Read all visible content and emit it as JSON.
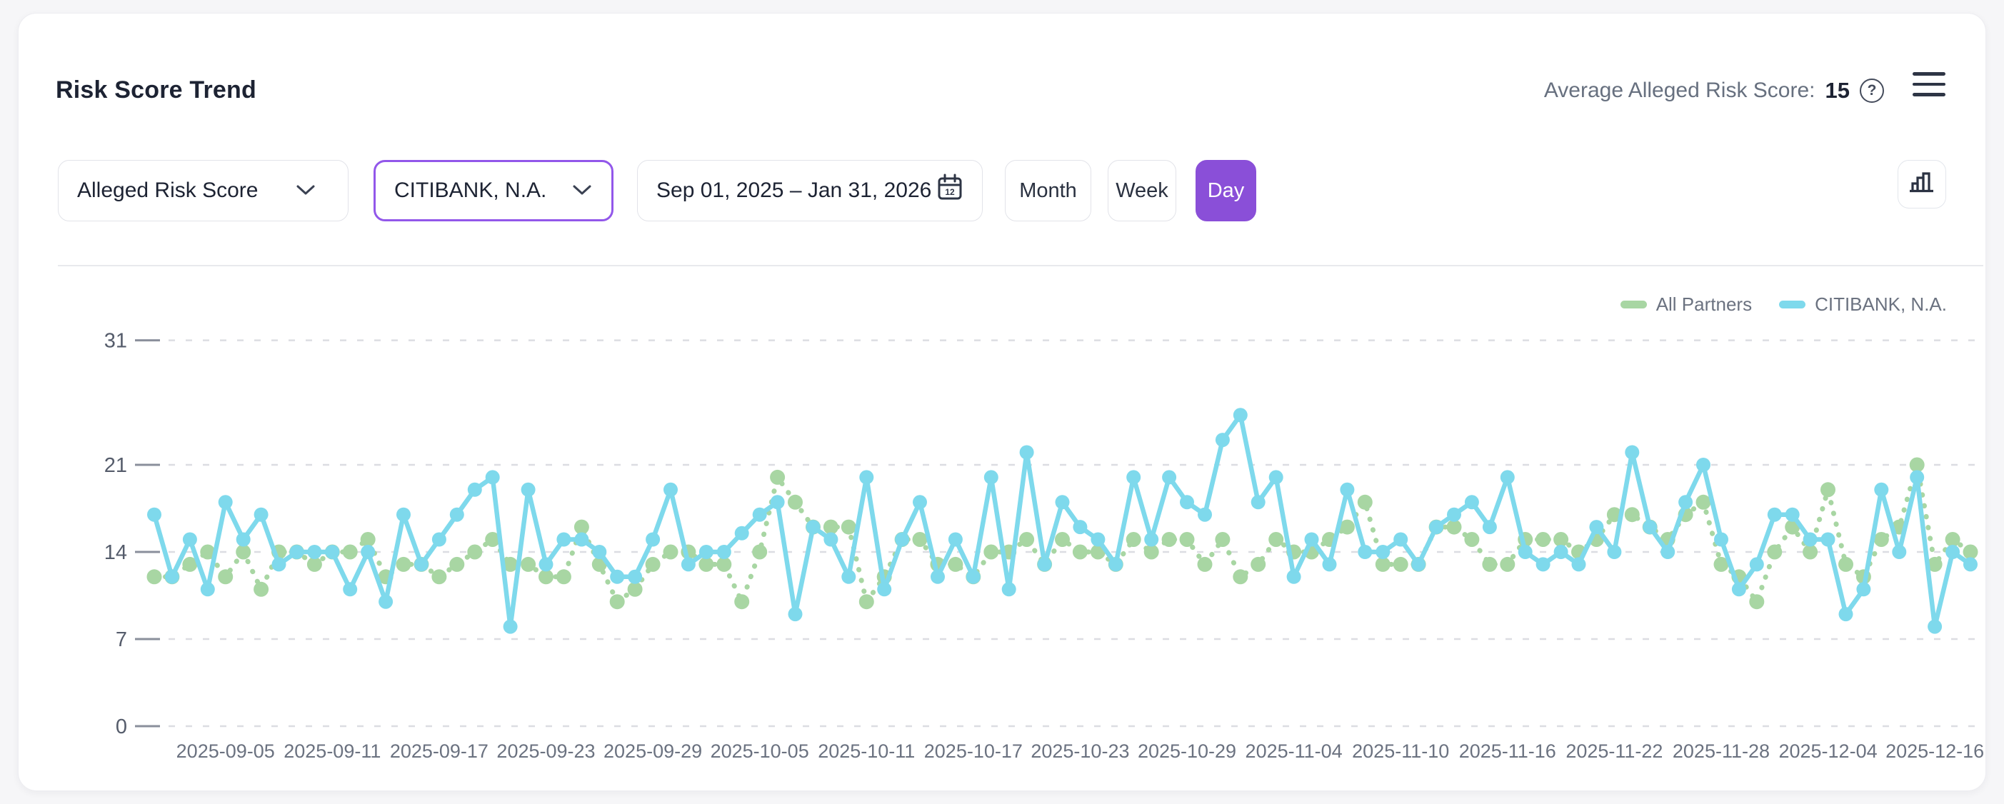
{
  "header": {
    "title": "Risk Score Trend",
    "average_label": "Average Alleged Risk Score:",
    "average_value": "15",
    "help_glyph": "?"
  },
  "controls": {
    "metric_select": {
      "value": "Alleged Risk Score"
    },
    "partner_select": {
      "value": "CITIBANK, N.A."
    },
    "date_range": {
      "value": "Sep 01, 2025 – Jan 31, 2026"
    },
    "granularity": [
      {
        "label": "Month",
        "selected": false
      },
      {
        "label": "Week",
        "selected": false
      },
      {
        "label": "Day",
        "selected": true
      }
    ]
  },
  "colors": {
    "accent_purple": "#8a4fd8",
    "selected_border_purple": "#9257ea",
    "all_partners_green": "#a8d6a3",
    "citibank_cyan": "#7ed9ec",
    "gridline_gray": "#dcdde2",
    "axis_text_gray": "#6b7280"
  },
  "chart_data": {
    "type": "line",
    "title": "Risk Score Trend",
    "xlabel": "",
    "ylabel": "",
    "grid": true,
    "legend_position": "top-right",
    "ylim": [
      0,
      33
    ],
    "y_ticks": [
      0,
      7,
      14,
      21,
      31
    ],
    "x_tick_indices": [
      4,
      10,
      16,
      22,
      28,
      34,
      40,
      46,
      52,
      58,
      64,
      70,
      76,
      82,
      88,
      94,
      100
    ],
    "x_tick_labels": [
      "2025-09-05",
      "2025-09-11",
      "2025-09-17",
      "2025-09-23",
      "2025-09-29",
      "2025-10-05",
      "2025-10-11",
      "2025-10-17",
      "2025-10-23",
      "2025-10-29",
      "2025-11-04",
      "2025-11-10",
      "2025-11-16",
      "2025-11-22",
      "2025-11-28",
      "2025-12-04",
      "2025-12-16"
    ],
    "series": [
      {
        "name": "All Partners",
        "color": "#a8d6a3",
        "style": "dotted",
        "values": [
          12,
          12,
          13,
          14,
          12,
          14,
          11,
          14,
          14,
          13,
          14,
          14,
          15,
          12,
          13,
          13,
          12,
          13,
          14,
          15,
          13,
          13,
          12,
          12,
          16,
          13,
          10,
          11,
          13,
          14,
          14,
          13,
          13,
          10,
          14,
          20,
          18,
          16,
          16,
          16,
          10,
          12,
          15,
          15,
          13,
          13,
          12,
          14,
          14,
          15,
          13,
          15,
          14,
          14,
          13,
          15,
          14,
          15,
          15,
          13,
          15,
          12,
          13,
          15,
          14,
          14,
          15,
          16,
          18,
          13,
          13,
          13,
          16,
          16,
          15,
          13,
          13,
          15,
          15,
          15,
          14,
          15,
          17,
          17,
          16,
          15,
          17,
          18,
          13,
          12,
          10,
          14,
          16,
          14,
          19,
          13,
          12,
          15,
          16,
          21,
          13,
          15,
          14
        ]
      },
      {
        "name": "CITIBANK, N.A.",
        "color": "#7ed9ec",
        "style": "solid",
        "values": [
          17,
          12,
          15,
          11,
          18,
          15,
          17,
          13,
          14,
          14,
          14,
          11,
          14,
          10,
          17,
          13,
          15,
          17,
          19,
          20,
          8,
          19,
          13,
          15,
          15,
          14,
          12,
          12,
          15,
          19,
          13,
          14,
          14,
          15.5,
          17,
          18,
          9,
          16,
          15,
          12,
          20,
          11,
          15,
          18,
          12,
          15,
          12,
          20,
          11,
          22,
          13,
          18,
          16,
          15,
          13,
          20,
          15,
          20,
          18,
          17,
          23,
          25,
          18,
          20,
          12,
          15,
          13,
          19,
          14,
          14,
          15,
          13,
          16,
          17,
          18,
          16,
          20,
          14,
          13,
          14,
          13,
          16,
          14,
          22,
          16,
          14,
          18,
          21,
          15,
          11,
          13,
          17,
          17,
          15,
          15,
          9,
          11,
          19,
          14,
          20,
          8,
          14,
          13
        ]
      }
    ]
  }
}
